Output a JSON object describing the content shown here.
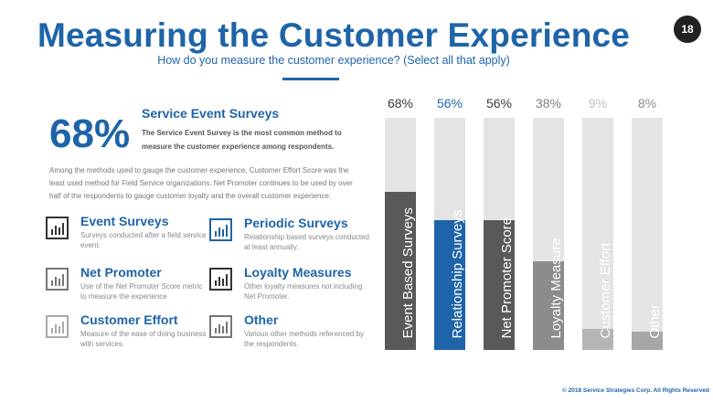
{
  "header": {
    "title": "Measuring the Customer Experience",
    "subtitle": "How do you measure the customer experience? (Select all that apply)",
    "page_number": "18"
  },
  "highlight": {
    "percent": "68%",
    "title": "Service Event Surveys",
    "description": "The Service Event Survey is the most common method to measure the customer experience among respondents."
  },
  "intro": "Among the methods used to gauge the customer experience, Customer Effort Score was the least used method for Field Service organizations. Net Promoter continues to be used by over half of the respondents to gauge customer loyalty and the overall customer experience.",
  "methods": [
    {
      "title": "Event Surveys",
      "description": "Surveys conducted after a field service event."
    },
    {
      "title": "Periodic Surveys",
      "description": "Relationship based surveys conducted at least annually."
    },
    {
      "title": "Net Promoter",
      "description": "Use of the Net Promoter Score metric to measure the experience"
    },
    {
      "title": "Loyalty Measures",
      "description": "Other loyalty measures not including Net Promoter."
    },
    {
      "title": "Customer Effort",
      "description": "Measure of the ease of doing business with services."
    },
    {
      "title": "Other",
      "description": "Various other methods referenced by the respondents."
    }
  ],
  "chart_data": {
    "type": "bar",
    "orientation": "vertical",
    "title": "",
    "xlabel": "",
    "ylabel": "",
    "ylim": [
      0,
      100
    ],
    "categories": [
      "Event Based Surveys",
      "Relationship Surveys",
      "Net Promoter Score",
      "Loyalty Measure",
      "Customer Effort",
      "Other"
    ],
    "values": [
      68,
      56,
      56,
      38,
      9,
      8
    ],
    "value_labels": [
      "68%",
      "56%",
      "56%",
      "38%",
      "9%",
      "8%"
    ],
    "bar_colors": [
      "#595959",
      "#1e64a8",
      "#595959",
      "#8c8c8c",
      "#b5b5b5",
      "#a6a6a6"
    ],
    "label_colors": [
      "#3a3a3a",
      "#1e64a8",
      "#3a3a3a",
      "#7f7f7f",
      "#bfbfbf",
      "#8c8c8c"
    ],
    "track_color": "#e4e4e4",
    "grid": false,
    "legend": "none"
  },
  "footer": "© 2018 Service Strategies Corp. All Rights Reserved"
}
